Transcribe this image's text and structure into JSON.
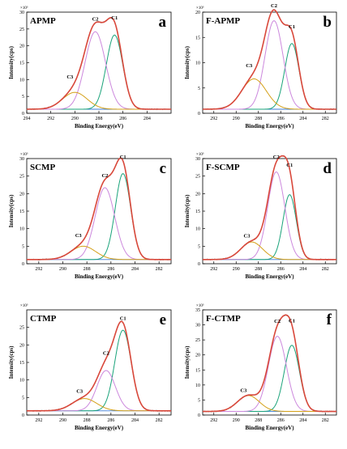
{
  "chart_data": [
    {
      "type": "line",
      "panel_name": "APMP",
      "panel_letter": "a",
      "xlabel": "Binding Energy(eV)",
      "ylabel": "Intensity(cps)",
      "y_exponent_label": "×10³",
      "xlim": [
        294,
        282
      ],
      "xticks": [
        294,
        292,
        290,
        288,
        286,
        284
      ],
      "ylim": [
        0,
        30
      ],
      "yticks": [
        0,
        5,
        10,
        15,
        20,
        25,
        30
      ],
      "baseline": 1.2,
      "peaks": [
        {
          "label": "C1",
          "center": 286.7,
          "height": 22.0,
          "fwhm": 1.6,
          "color": "#1aa37a"
        },
        {
          "label": "C2",
          "center": 288.3,
          "height": 23.0,
          "fwhm": 2.0,
          "color": "#cc88dd"
        },
        {
          "label": "C3",
          "center": 290.0,
          "height": 5.0,
          "fwhm": 2.4,
          "color": "#d4a017"
        }
      ]
    },
    {
      "type": "line",
      "panel_name": "F-APMP",
      "panel_letter": "b",
      "xlabel": "Binding Energy(eV)",
      "ylabel": "Intensity(cps)",
      "y_exponent_label": "×10³",
      "xlim": [
        293,
        281
      ],
      "xticks": [
        292,
        290,
        288,
        286,
        284,
        282
      ],
      "ylim": [
        0,
        20
      ],
      "yticks": [
        0,
        5,
        10,
        15,
        20
      ],
      "baseline": 0.8,
      "peaks": [
        {
          "label": "C1",
          "center": 285.0,
          "height": 13.0,
          "fwhm": 1.5,
          "color": "#1aa37a"
        },
        {
          "label": "C2",
          "center": 286.6,
          "height": 17.5,
          "fwhm": 1.9,
          "color": "#cc88dd"
        },
        {
          "label": "C3",
          "center": 288.4,
          "height": 6.0,
          "fwhm": 2.6,
          "color": "#d4a017"
        }
      ]
    },
    {
      "type": "line",
      "panel_name": "SCMP",
      "panel_letter": "c",
      "xlabel": "Binding Energy(eV)",
      "ylabel": "Intensity(cps)",
      "y_exponent_label": "×10³",
      "xlim": [
        293,
        281
      ],
      "xticks": [
        292,
        290,
        288,
        286,
        284,
        282
      ],
      "ylim": [
        0,
        30
      ],
      "yticks": [
        0,
        5,
        10,
        15,
        20,
        25,
        30
      ],
      "baseline": 1.2,
      "peaks": [
        {
          "label": "C1",
          "center": 285.0,
          "height": 24.5,
          "fwhm": 1.5,
          "color": "#1aa37a"
        },
        {
          "label": "C2",
          "center": 286.5,
          "height": 20.5,
          "fwhm": 1.9,
          "color": "#cc88dd"
        },
        {
          "label": "C3",
          "center": 288.3,
          "height": 3.8,
          "fwhm": 2.4,
          "color": "#d4a017"
        }
      ]
    },
    {
      "type": "line",
      "panel_name": "F-SCMP",
      "panel_letter": "d",
      "xlabel": "Binding Energy(eV)",
      "ylabel": "Intensity(cps)",
      "y_exponent_label": "×10³",
      "xlim": [
        293,
        281
      ],
      "xticks": [
        292,
        290,
        288,
        286,
        284,
        282
      ],
      "ylim": [
        0,
        30
      ],
      "yticks": [
        0,
        5,
        10,
        15,
        20,
        25,
        30
      ],
      "baseline": 1.2,
      "peaks": [
        {
          "label": "C1",
          "center": 285.2,
          "height": 18.5,
          "fwhm": 1.4,
          "color": "#1aa37a"
        },
        {
          "label": "C2",
          "center": 286.4,
          "height": 25.0,
          "fwhm": 1.8,
          "color": "#cc88dd"
        },
        {
          "label": "C3",
          "center": 288.6,
          "height": 5.0,
          "fwhm": 2.3,
          "color": "#d4a017"
        }
      ]
    },
    {
      "type": "line",
      "panel_name": "CTMP",
      "panel_letter": "e",
      "xlabel": "Binding Energy(eV)",
      "ylabel": "Intensity(cps)",
      "y_exponent_label": "×10³",
      "xlim": [
        293,
        281
      ],
      "xticks": [
        292,
        290,
        288,
        286,
        284,
        282
      ],
      "ylim": [
        0,
        30
      ],
      "yticks": [
        0,
        5,
        10,
        15,
        20,
        25
      ],
      "baseline": 1.2,
      "peaks": [
        {
          "label": "C1",
          "center": 285.0,
          "height": 23.0,
          "fwhm": 1.6,
          "color": "#1aa37a"
        },
        {
          "label": "C2",
          "center": 286.4,
          "height": 11.5,
          "fwhm": 1.8,
          "color": "#cc88dd"
        },
        {
          "label": "C3",
          "center": 288.2,
          "height": 3.5,
          "fwhm": 2.4,
          "color": "#d4a017"
        }
      ]
    },
    {
      "type": "line",
      "panel_name": "F-CTMP",
      "panel_letter": "f",
      "xlabel": "Binding Energy(eV)",
      "ylabel": "Intensity(cps)",
      "y_exponent_label": "×10³",
      "xlim": [
        293,
        281
      ],
      "xticks": [
        292,
        290,
        288,
        286,
        284,
        282
      ],
      "ylim": [
        0,
        35
      ],
      "yticks": [
        0,
        5,
        10,
        15,
        20,
        25,
        30,
        35
      ],
      "baseline": 1.2,
      "peaks": [
        {
          "label": "C1",
          "center": 285.0,
          "height": 22.0,
          "fwhm": 1.6,
          "color": "#1aa37a"
        },
        {
          "label": "C2",
          "center": 286.3,
          "height": 25.0,
          "fwhm": 1.9,
          "color": "#cc88dd"
        },
        {
          "label": "C3",
          "center": 288.9,
          "height": 5.3,
          "fwhm": 2.3,
          "color": "#d4a017"
        }
      ]
    }
  ]
}
